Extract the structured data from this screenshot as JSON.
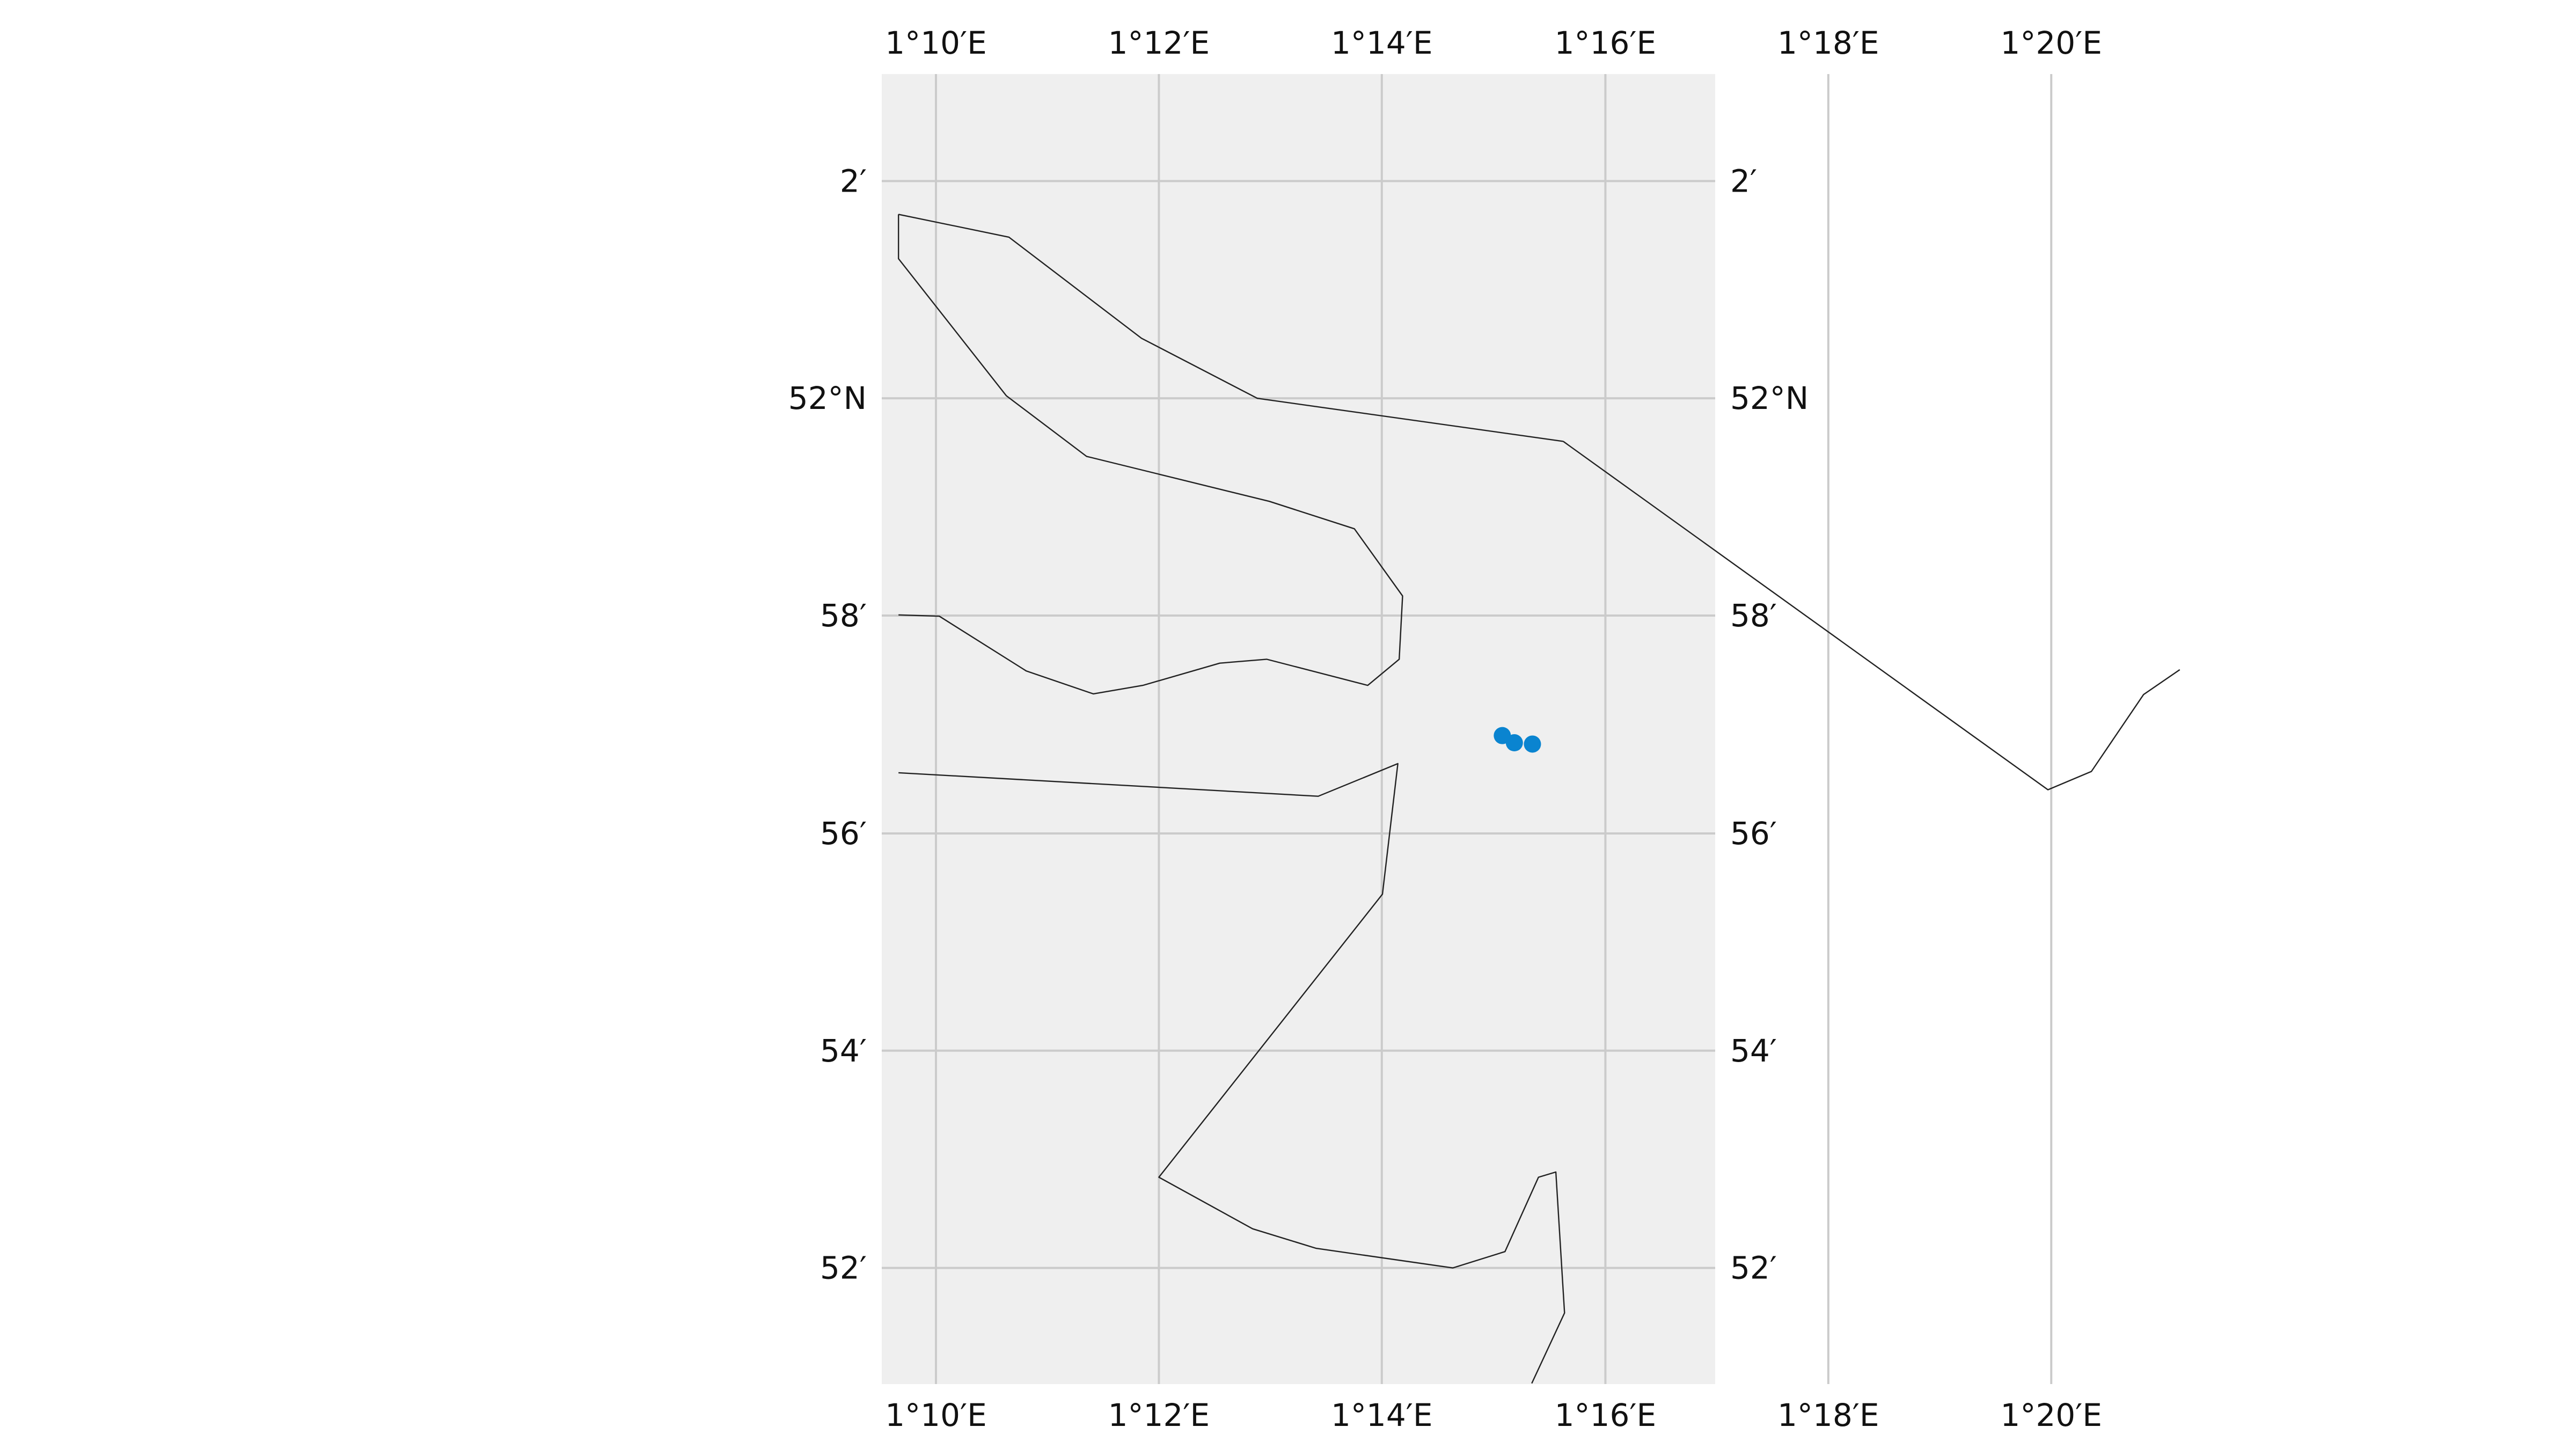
{
  "map": {
    "background_color": "#efefef",
    "grid_color": "#cbcbcb",
    "coastline_color": "#222222",
    "marker_color": "#0a84d0",
    "lon_ticks": [
      {
        "label": "1°10′E",
        "lon": 1.1667
      },
      {
        "label": "1°12′E",
        "lon": 1.2
      },
      {
        "label": "1°14′E",
        "lon": 1.2333
      },
      {
        "label": "1°16′E",
        "lon": 1.2667
      },
      {
        "label": "1°18′E",
        "lon": 1.3
      },
      {
        "label": "1°20′E",
        "lon": 1.3333
      }
    ],
    "lat_ticks": [
      {
        "label": "2′",
        "lat": 52.0333
      },
      {
        "label": "52°N",
        "lat": 52.0
      },
      {
        "label": "58′",
        "lat": 51.9667
      },
      {
        "label": "56′",
        "lat": 51.9333
      },
      {
        "label": "54′",
        "lat": 51.9
      },
      {
        "label": "52′",
        "lat": 51.8667
      }
    ],
    "extent": {
      "lon": [
        1.1586,
        1.2831
      ],
      "lat": [
        51.8489,
        52.0497
      ]
    },
    "coastlines": [
      [
        [
          1.1611,
          52.0282
        ],
        [
          1.1776,
          52.0247
        ],
        [
          1.1974,
          52.0092
        ],
        [
          1.2147,
          52.0
        ],
        [
          1.2604,
          51.9934
        ]
      ],
      [
        [
          1.1611,
          52.0282
        ],
        [
          1.1611,
          52.0214
        ],
        [
          1.1772,
          52.0004
        ],
        [
          1.1892,
          51.9911
        ],
        [
          1.2165,
          51.9842
        ],
        [
          1.2292,
          51.98
        ],
        [
          1.2364,
          51.9697
        ],
        [
          1.2359,
          51.96
        ],
        [
          1.2312,
          51.956
        ],
        [
          1.2161,
          51.96
        ],
        [
          1.2091,
          51.9594
        ],
        [
          1.1976,
          51.956
        ],
        [
          1.1902,
          51.9547
        ],
        [
          1.1802,
          51.9582
        ],
        [
          1.1672,
          51.9666
        ],
        [
          1.1611,
          51.9668
        ]
      ],
      [
        [
          1.2604,
          51.9934
        ],
        [
          1.3328,
          51.94
        ],
        [
          1.3393,
          51.9428
        ],
        [
          1.3471,
          51.9546
        ],
        [
          1.3525,
          51.9584
        ]
      ],
      [
        [
          1.1611,
          51.9426
        ],
        [
          1.2238,
          51.939
        ],
        [
          1.2357,
          51.944
        ],
        [
          1.2334,
          51.924
        ],
        [
          1.2,
          51.8806
        ],
        [
          1.214,
          51.8727
        ],
        [
          1.2235,
          51.8697
        ],
        [
          1.2439,
          51.8667
        ],
        [
          1.2517,
          51.8692
        ],
        [
          1.2567,
          51.8806
        ],
        [
          1.2593,
          51.8814
        ],
        [
          1.2606,
          51.8598
        ],
        [
          1.2557,
          51.849
        ]
      ]
    ],
    "markers": [
      {
        "lon": 1.2513,
        "lat": 51.9483
      },
      {
        "lon": 1.2531,
        "lat": 51.9472
      },
      {
        "lon": 1.2558,
        "lat": 51.947
      }
    ]
  }
}
